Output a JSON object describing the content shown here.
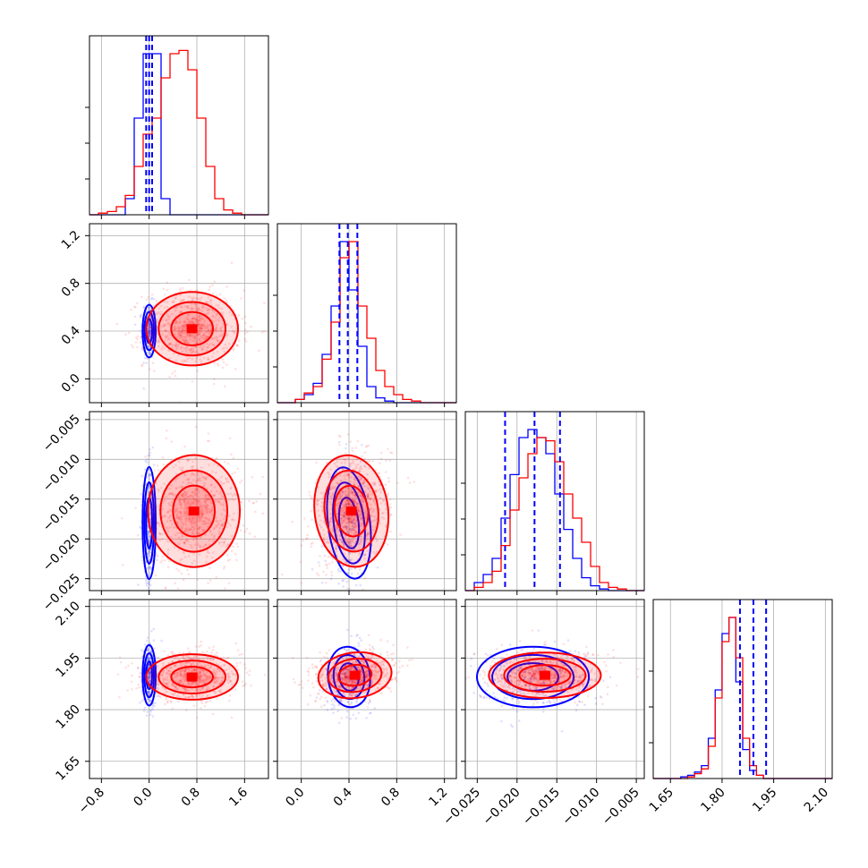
{
  "colors": {
    "series_a": "#0000ff",
    "series_b": "#ff0000",
    "grid": "#b0b0b0",
    "frame": "#000000",
    "background": "#ffffff"
  },
  "chart_data": {
    "type": "corner",
    "grid": true,
    "n_params": 4,
    "series": [
      {
        "color": "#0000ff"
      },
      {
        "color": "#ff0000"
      }
    ],
    "axes": [
      {
        "range": [
          -1.0,
          2.0
        ],
        "ticks": [
          -0.8,
          0.0,
          0.8,
          1.6
        ],
        "tick_labels": [
          "−0.8",
          "0.0",
          "0.8",
          "1.6"
        ]
      },
      {
        "range": [
          -0.2,
          1.3
        ],
        "ticks": [
          0.0,
          0.4,
          0.8,
          1.2
        ],
        "tick_labels": [
          "0.0",
          "0.4",
          "0.8",
          "1.2"
        ]
      },
      {
        "range": [
          -0.0265,
          -0.004
        ],
        "ticks": [
          -0.025,
          -0.02,
          -0.015,
          -0.01,
          -0.005
        ],
        "tick_labels": [
          "−0.025",
          "−0.020",
          "−0.015",
          "−0.010",
          "−0.005"
        ]
      },
      {
        "range": [
          1.6,
          2.12
        ],
        "ticks": [
          1.65,
          1.8,
          1.95,
          2.1
        ],
        "tick_labels": [
          "1.65",
          "1.80",
          "1.95",
          "2.10"
        ]
      }
    ],
    "quantiles": [
      {
        "series": 0,
        "values": [
          -0.05,
          0.0,
          0.05
        ]
      },
      {
        "series": 0,
        "values": [
          0.32,
          0.39,
          0.47
        ]
      },
      {
        "series": 0,
        "values": [
          -0.0215,
          -0.0178,
          -0.0146
        ]
      },
      {
        "series": 0,
        "values": [
          1.852,
          1.891,
          1.928
        ]
      }
    ],
    "histograms": [
      {
        "bins": [
          -1.0,
          2.0,
          20
        ],
        "series": [
          {
            "color": "#0000ff",
            "values": [
              0,
              0,
              0,
              0,
              0.1,
              0.6,
              1.0,
              1.0,
              0.1,
              0,
              0,
              0,
              0,
              0,
              0,
              0,
              0,
              0,
              0,
              0
            ]
          },
          {
            "color": "#ff0000",
            "values": [
              0,
              0.01,
              0.02,
              0.05,
              0.12,
              0.3,
              0.5,
              0.6,
              0.85,
              1.0,
              1.02,
              0.9,
              0.6,
              0.3,
              0.1,
              0.03,
              0.01,
              0,
              0,
              0
            ]
          }
        ]
      },
      {
        "bins": [
          -0.2,
          1.3,
          20
        ],
        "series": [
          {
            "color": "#0000ff",
            "values": [
              0,
              0,
              0.02,
              0.05,
              0.12,
              0.3,
              0.6,
              1.0,
              0.7,
              0.35,
              0.1,
              0.03,
              0.01,
              0,
              0,
              0,
              0,
              0,
              0,
              0
            ]
          },
          {
            "color": "#ff0000",
            "values": [
              0,
              0,
              0.02,
              0.06,
              0.1,
              0.27,
              0.5,
              0.9,
              1.0,
              0.6,
              0.4,
              0.2,
              0.1,
              0.05,
              0.02,
              0.01,
              0,
              0,
              0,
              0
            ]
          }
        ]
      },
      {
        "bins": [
          -0.0265,
          -0.004,
          20
        ],
        "series": [
          {
            "color": "#0000ff",
            "values": [
              0,
              0.05,
              0.1,
              0.2,
              0.45,
              0.72,
              0.95,
              1.0,
              0.95,
              0.85,
              0.6,
              0.38,
              0.2,
              0.08,
              0.03,
              0.01,
              0,
              0,
              0,
              0
            ]
          },
          {
            "color": "#ff0000",
            "values": [
              0,
              0.02,
              0.05,
              0.12,
              0.28,
              0.5,
              0.7,
              0.85,
              0.95,
              0.93,
              0.8,
              0.6,
              0.45,
              0.3,
              0.15,
              0.05,
              0.02,
              0.01,
              0,
              0
            ]
          }
        ]
      },
      {
        "bins": [
          1.6,
          2.12,
          26
        ],
        "series": [
          {
            "color": "#0000ff",
            "values": [
              0,
              0,
              0,
              0,
              0.01,
              0.02,
              0.04,
              0.08,
              0.25,
              0.55,
              0.9,
              1.0,
              0.6,
              0.18,
              0.05,
              0.02,
              0,
              0,
              0,
              0,
              0,
              0,
              0,
              0,
              0,
              0
            ]
          },
          {
            "color": "#ff0000",
            "values": [
              0,
              0,
              0,
              0,
              0,
              0.01,
              0.03,
              0.06,
              0.2,
              0.5,
              0.85,
              1.0,
              0.75,
              0.25,
              0.08,
              0.02,
              0,
              0,
              0,
              0,
              0,
              0,
              0,
              0,
              0,
              0
            ]
          }
        ]
      }
    ],
    "pairs": [
      {
        "x": 0,
        "y": 1,
        "series": [
          {
            "color": "#0000ff",
            "mean": [
              0.0,
              0.4
            ],
            "sd": [
              0.05,
              0.1
            ],
            "rho": 0.0
          },
          {
            "color": "#ff0000",
            "mean": [
              0.72,
              0.42
            ],
            "sd": [
              0.35,
              0.14
            ],
            "rho": 0.0
          }
        ]
      },
      {
        "x": 0,
        "y": 2,
        "series": [
          {
            "color": "#0000ff",
            "mean": [
              0.0,
              -0.018
            ],
            "sd": [
              0.05,
              0.0032
            ],
            "rho": 0.0
          },
          {
            "color": "#ff0000",
            "mean": [
              0.75,
              -0.0165
            ],
            "sd": [
              0.35,
              0.0032
            ],
            "rho": 0.0
          }
        ]
      },
      {
        "x": 0,
        "y": 3,
        "series": [
          {
            "color": "#0000ff",
            "mean": [
              0.0,
              1.9
            ],
            "sd": [
              0.05,
              0.04
            ],
            "rho": 0.0
          },
          {
            "color": "#ff0000",
            "mean": [
              0.72,
              1.895
            ],
            "sd": [
              0.35,
              0.03
            ],
            "rho": 0.0
          }
        ]
      },
      {
        "x": 1,
        "y": 2,
        "series": [
          {
            "color": "#0000ff",
            "mean": [
              0.4,
              -0.018
            ],
            "sd": [
              0.08,
              0.0032
            ],
            "rho": 0.2
          },
          {
            "color": "#ff0000",
            "mean": [
              0.42,
              -0.0165
            ],
            "sd": [
              0.14,
              0.0032
            ],
            "rho": 0.2
          }
        ]
      },
      {
        "x": 1,
        "y": 3,
        "series": [
          {
            "color": "#0000ff",
            "mean": [
              0.4,
              1.895
            ],
            "sd": [
              0.08,
              0.04
            ],
            "rho": 0.2
          },
          {
            "color": "#ff0000",
            "mean": [
              0.45,
              1.9
            ],
            "sd": [
              0.14,
              0.03
            ],
            "rho": 0.2
          }
        ]
      },
      {
        "x": 2,
        "y": 3,
        "series": [
          {
            "color": "#0000ff",
            "mean": [
              -0.018,
              1.895
            ],
            "sd": [
              0.0032,
              0.04
            ],
            "rho": 0.0
          },
          {
            "color": "#ff0000",
            "mean": [
              -0.0165,
              1.9
            ],
            "sd": [
              0.0032,
              0.03
            ],
            "rho": 0.0
          }
        ]
      }
    ]
  }
}
